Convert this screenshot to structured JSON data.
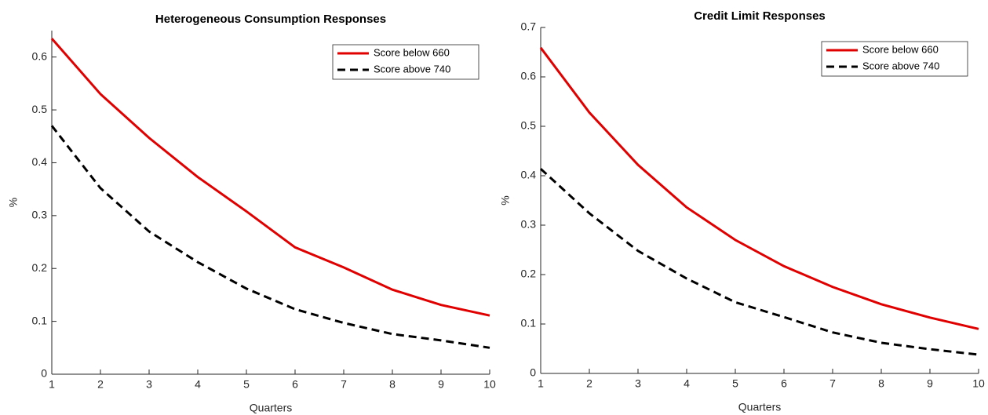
{
  "chart_data": [
    {
      "type": "line",
      "title": "Heterogeneous Consumption Responses",
      "xlabel": "Quarters",
      "ylabel": "%",
      "x": [
        1,
        2,
        3,
        4,
        5,
        6,
        7,
        8,
        9,
        10
      ],
      "xlim": [
        1,
        10
      ],
      "xticks": [
        1,
        2,
        3,
        4,
        5,
        6,
        7,
        8,
        9,
        10
      ],
      "ylim": [
        0,
        0.65
      ],
      "yticks": [
        0,
        0.1,
        0.2,
        0.3,
        0.4,
        0.5,
        0.6
      ],
      "grid": false,
      "legend": "northeast",
      "series": [
        {
          "name": "Score below 660",
          "color": "#e00000",
          "line_style": "solid",
          "values": [
            0.635,
            0.53,
            0.447,
            0.373,
            0.308,
            0.24,
            0.202,
            0.16,
            0.131,
            0.111
          ]
        },
        {
          "name": "Score above 740",
          "color": "#000000",
          "line_style": "dashed",
          "values": [
            0.47,
            0.352,
            0.27,
            0.212,
            0.162,
            0.123,
            0.097,
            0.076,
            0.064,
            0.05
          ]
        }
      ]
    },
    {
      "type": "line",
      "title": "Credit Limit Responses",
      "xlabel": "Quarters",
      "ylabel": "%",
      "x": [
        1,
        2,
        3,
        4,
        5,
        6,
        7,
        8,
        9,
        10
      ],
      "xlim": [
        1,
        10
      ],
      "xticks": [
        1,
        2,
        3,
        4,
        5,
        6,
        7,
        8,
        9,
        10
      ],
      "ylim": [
        0,
        0.7
      ],
      "yticks": [
        0,
        0.1,
        0.2,
        0.3,
        0.4,
        0.5,
        0.6,
        0.7
      ],
      "grid": false,
      "legend": "northeast",
      "series": [
        {
          "name": "Score below 660",
          "color": "#e00000",
          "line_style": "solid",
          "values": [
            0.659,
            0.528,
            0.422,
            0.336,
            0.27,
            0.217,
            0.175,
            0.14,
            0.113,
            0.09
          ]
        },
        {
          "name": "Score above 740",
          "color": "#000000",
          "line_style": "dashed",
          "values": [
            0.414,
            0.324,
            0.248,
            0.192,
            0.144,
            0.114,
            0.083,
            0.062,
            0.049,
            0.038
          ]
        }
      ]
    }
  ]
}
